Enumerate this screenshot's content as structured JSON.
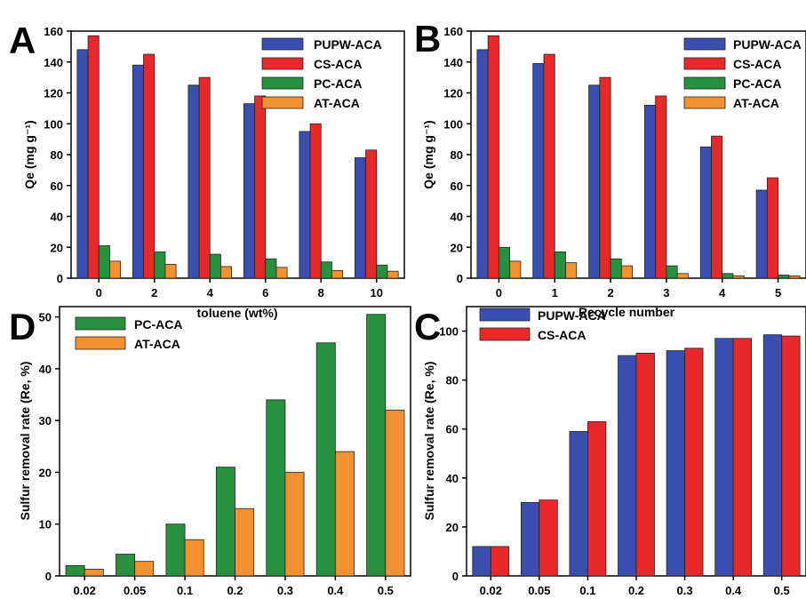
{
  "colors": {
    "PUPW-ACA": "#3b4fb0",
    "CS-ACA": "#e8292a",
    "PC-ACA": "#27913f",
    "AT-ACA": "#f39130"
  },
  "chart_data": [
    {
      "id": "A",
      "panel_letter": "A",
      "type": "bar",
      "xlabel": "toluene (wt%)",
      "ylabel": "Qe (mg g⁻¹)",
      "ylim": [
        0,
        160
      ],
      "yticks": [
        0,
        20,
        40,
        60,
        80,
        100,
        120,
        140,
        160
      ],
      "categories": [
        "0",
        "2",
        "4",
        "6",
        "8",
        "10"
      ],
      "legend_position": "top-right",
      "grid": false,
      "series": [
        {
          "name": "PUPW-ACA",
          "values": [
            148,
            138,
            125,
            113,
            95,
            78
          ]
        },
        {
          "name": "CS-ACA",
          "values": [
            157,
            145,
            130,
            118,
            100,
            83
          ]
        },
        {
          "name": "PC-ACA",
          "values": [
            21,
            17,
            15.5,
            12.5,
            10.5,
            8.5
          ]
        },
        {
          "name": "AT-ACA",
          "values": [
            11,
            9,
            7.5,
            7,
            5,
            4.5
          ]
        }
      ]
    },
    {
      "id": "B",
      "panel_letter": "B",
      "type": "bar",
      "xlabel": "Recycle number",
      "ylabel": "Qe (mg g⁻¹)",
      "ylim": [
        0,
        160
      ],
      "yticks": [
        0,
        20,
        40,
        60,
        80,
        100,
        120,
        140,
        160
      ],
      "categories": [
        "0",
        "1",
        "2",
        "3",
        "4",
        "5"
      ],
      "legend_position": "top-right",
      "grid": false,
      "series": [
        {
          "name": "PUPW-ACA",
          "values": [
            148,
            139,
            125,
            112,
            85,
            57
          ]
        },
        {
          "name": "CS-ACA",
          "values": [
            157,
            145,
            130,
            118,
            92,
            65
          ]
        },
        {
          "name": "PC-ACA",
          "values": [
            20,
            17,
            12.5,
            8,
            3,
            2
          ]
        },
        {
          "name": "AT-ACA",
          "values": [
            11,
            10,
            8,
            3,
            1.5,
            1.5
          ]
        }
      ]
    },
    {
      "id": "D",
      "panel_letter": "D",
      "type": "bar",
      "xlabel": "",
      "ylabel": "Sulfur removal rate (Re, %)",
      "ylim": [
        0,
        52
      ],
      "yticks": [
        0,
        10,
        20,
        30,
        40,
        50
      ],
      "categories": [
        "0.02",
        "0.05",
        "0.1",
        "0.2",
        "0.3",
        "0.4",
        "0.5"
      ],
      "legend_position": "top-left",
      "grid": false,
      "series": [
        {
          "name": "PC-ACA",
          "values": [
            2,
            4.2,
            10,
            21,
            34,
            45,
            50.5
          ]
        },
        {
          "name": "AT-ACA",
          "values": [
            1.3,
            2.8,
            7,
            13,
            20,
            24,
            32
          ]
        }
      ]
    },
    {
      "id": "C",
      "panel_letter": "C",
      "type": "bar",
      "xlabel": "",
      "ylabel": "Sulfur removal rate (Re, %)",
      "ylim": [
        0,
        110
      ],
      "yticks": [
        0,
        20,
        40,
        60,
        80,
        100
      ],
      "categories": [
        "0.02",
        "0.05",
        "0.1",
        "0.2",
        "0.3",
        "0.4",
        "0.5"
      ],
      "legend_position": "top-left",
      "grid": false,
      "series": [
        {
          "name": "PUPW-ACA",
          "values": [
            12,
            30,
            59,
            90,
            92,
            97,
            98.5
          ]
        },
        {
          "name": "CS-ACA",
          "values": [
            12,
            31,
            63,
            91,
            93,
            97,
            98
          ]
        }
      ]
    }
  ]
}
